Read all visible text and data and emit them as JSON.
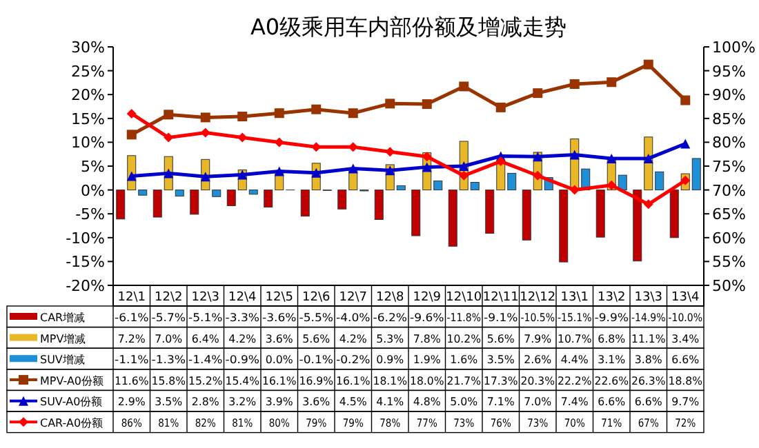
{
  "chart_data": {
    "type": "bar",
    "title": "A0级乘用车内部份额及增减走势",
    "categories": [
      "12\\1",
      "12\\2",
      "12\\3",
      "12\\4",
      "12\\5",
      "12\\6",
      "12\\7",
      "12\\8",
      "12\\9",
      "12\\10",
      "12\\11",
      "12\\12",
      "13\\1",
      "13\\2",
      "13\\3",
      "13\\4"
    ],
    "ylim": [
      -20,
      30
    ],
    "yticks": [
      {
        "value": -20,
        "label": "-20%"
      },
      {
        "value": -15,
        "label": "-15%"
      },
      {
        "value": -10,
        "label": "-10%"
      },
      {
        "value": -5,
        "label": "-5%"
      },
      {
        "value": 0,
        "label": "0%"
      },
      {
        "value": 5,
        "label": "5%"
      },
      {
        "value": 10,
        "label": "10%"
      },
      {
        "value": 15,
        "label": "15%"
      },
      {
        "value": 20,
        "label": "20%"
      },
      {
        "value": 25,
        "label": "25%"
      },
      {
        "value": 30,
        "label": "30%"
      }
    ],
    "y2lim": [
      50,
      100
    ],
    "y2ticks": [
      {
        "value": 50,
        "label": "50%"
      },
      {
        "value": 55,
        "label": "55%"
      },
      {
        "value": 60,
        "label": "60%"
      },
      {
        "value": 65,
        "label": "65%"
      },
      {
        "value": 70,
        "label": "70%"
      },
      {
        "value": 75,
        "label": "75%"
      },
      {
        "value": 80,
        "label": "80%"
      },
      {
        "value": 85,
        "label": "85%"
      },
      {
        "value": 90,
        "label": "90%"
      },
      {
        "value": 95,
        "label": "95%"
      },
      {
        "value": 100,
        "label": "100%"
      }
    ],
    "legend": "bottom left",
    "series": [
      {
        "name": "CAR增减",
        "color": "#c00000",
        "values": [
          -6.1,
          -5.7,
          -5.1,
          -3.3,
          -3.6,
          -5.5,
          -4.0,
          -6.2,
          -9.6,
          -11.8,
          -9.1,
          -10.5,
          -15.1,
          -9.9,
          -14.9,
          -10.0
        ],
        "value_labels": [
          "-6.1%",
          "-5.7%",
          "-5.1%",
          "-3.3%",
          "-3.6%",
          "-5.5%",
          "-4.0%",
          "-6.2%",
          "-9.6%",
          "-11.8%",
          "-9.1%",
          "-10.5%",
          "-15.1%",
          "-9.9%",
          "-14.9%",
          "-10.0%"
        ]
      },
      {
        "name": "MPV增减",
        "color": "#e8b828",
        "values": [
          7.2,
          7.0,
          6.4,
          4.2,
          3.6,
          5.6,
          4.2,
          5.3,
          7.8,
          10.2,
          5.6,
          7.9,
          10.7,
          6.8,
          11.1,
          3.4
        ],
        "value_labels": [
          "7.2%",
          "7.0%",
          "6.4%",
          "4.2%",
          "3.6%",
          "5.6%",
          "4.2%",
          "5.3%",
          "7.8%",
          "10.2%",
          "5.6%",
          "7.9%",
          "10.7%",
          "6.8%",
          "11.1%",
          "3.4%"
        ]
      },
      {
        "name": "SUV增减",
        "color": "#1f8fd8",
        "values": [
          -1.1,
          -1.3,
          -1.4,
          -0.9,
          0.0,
          -0.1,
          -0.2,
          0.9,
          1.9,
          1.6,
          3.5,
          2.6,
          4.4,
          3.1,
          3.8,
          6.6
        ],
        "value_labels": [
          "-1.1%",
          "-1.3%",
          "-1.4%",
          "-0.9%",
          "0.0%",
          "-0.1%",
          "-0.2%",
          "0.9%",
          "1.9%",
          "1.6%",
          "3.5%",
          "2.6%",
          "4.4%",
          "3.1%",
          "3.8%",
          "6.6%"
        ]
      },
      {
        "name": "MPV-A0份额",
        "type": "line",
        "color": "#993300",
        "marker": "square",
        "values": [
          11.6,
          15.8,
          15.2,
          15.4,
          16.1,
          16.9,
          16.1,
          18.1,
          18.0,
          21.7,
          17.3,
          20.3,
          22.2,
          22.6,
          26.3,
          18.8
        ],
        "value_labels": [
          "11.6%",
          "15.8%",
          "15.2%",
          "15.4%",
          "16.1%",
          "16.9%",
          "16.1%",
          "18.1%",
          "18.0%",
          "21.7%",
          "17.3%",
          "20.3%",
          "22.2%",
          "22.6%",
          "26.3%",
          "18.8%"
        ]
      },
      {
        "name": "SUV-A0份额",
        "type": "line",
        "color": "#0000cc",
        "marker": "triangle",
        "values": [
          2.9,
          3.5,
          2.8,
          3.2,
          3.9,
          3.6,
          4.5,
          4.1,
          4.8,
          5.0,
          7.1,
          7.0,
          7.4,
          6.6,
          6.6,
          9.7
        ],
        "value_labels": [
          "2.9%",
          "3.5%",
          "2.8%",
          "3.2%",
          "3.9%",
          "3.6%",
          "4.5%",
          "4.1%",
          "4.8%",
          "5.0%",
          "7.1%",
          "7.0%",
          "7.4%",
          "6.6%",
          "6.6%",
          "9.7%"
        ]
      },
      {
        "name": "CAR-A0份额",
        "type": "line",
        "color": "#ff0000",
        "marker": "diamond",
        "axis": "y2",
        "values": [
          86,
          81,
          82,
          81,
          80,
          79,
          79,
          78,
          77,
          73,
          76,
          73,
          70,
          71,
          67,
          72
        ],
        "value_labels": [
          "86%",
          "81%",
          "82%",
          "81%",
          "80%",
          "79%",
          "79%",
          "78%",
          "77%",
          "73%",
          "76%",
          "73%",
          "70%",
          "71%",
          "67%",
          "72%"
        ]
      }
    ]
  }
}
